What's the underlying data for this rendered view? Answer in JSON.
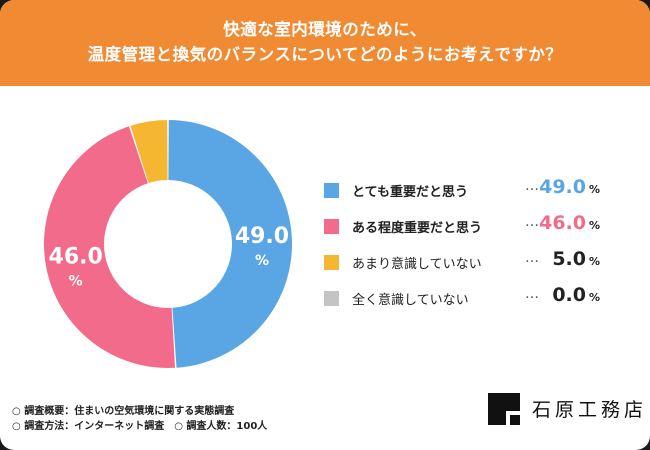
{
  "header": {
    "line1": "快適な室内環境のために、",
    "line2": "温度管理と換気のバランスについてどのようにお考えですか？"
  },
  "chart_data": {
    "type": "pie",
    "donut": true,
    "title": "",
    "categories": [
      "とても重要だと思う",
      "ある程度重要だと思う",
      "あまり意識していない",
      "全く意識していない"
    ],
    "values": [
      49.0,
      46.0,
      5.0,
      0.0
    ],
    "value_display": [
      "49.0",
      "46.0",
      "5.0",
      "0.0"
    ],
    "unit": "%",
    "colors": [
      "#5aa6e5",
      "#f26b8a",
      "#f5b731",
      "#c4c4c4"
    ],
    "value_colors": [
      "#5aa6e5",
      "#f26b8a",
      "#222222",
      "#222222"
    ],
    "legend_bold": [
      true,
      true,
      false,
      false
    ],
    "legend_position": "right",
    "slice_labels": [
      {
        "index": 0,
        "text": "49.0",
        "unit": "%"
      },
      {
        "index": 1,
        "text": "46.0",
        "unit": "%"
      }
    ]
  },
  "legend_dots": "…",
  "footer": {
    "line1": "○ 調査概要：住まいの空気環境に関する実態調査",
    "line2": "○ 調査方法：インターネット調査　○ 調査人数：100人"
  },
  "logo": {
    "text": "石原工務店"
  }
}
